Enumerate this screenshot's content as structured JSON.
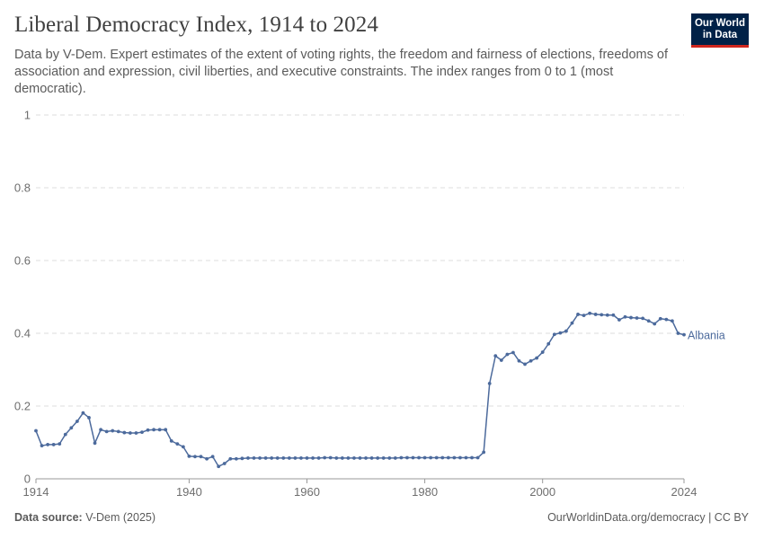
{
  "header": {
    "title": "Liberal Democracy Index, 1914 to 2024",
    "subtitle": "Data by V-Dem. Expert estimates of the extent of voting rights, the freedom and fairness of elections, freedoms of association and expression, civil liberties, and executive constraints. The index ranges from 0 to 1 (most democratic).",
    "logo_line1": "Our World",
    "logo_line2": "in Data"
  },
  "footer": {
    "source_label": "Data source:",
    "source_value": "V-Dem (2025)",
    "url": "OurWorldinData.org/democracy | CC BY"
  },
  "colors": {
    "series": "#4c6a9c",
    "grid": "#dddddd",
    "logo_bg": "#002147",
    "logo_accent": "#ce261e"
  },
  "chart_data": {
    "type": "line",
    "title": "Liberal Democracy Index, 1914 to 2024",
    "xlabel": "",
    "ylabel": "",
    "xlim": [
      1914,
      2024
    ],
    "ylim": [
      0,
      1
    ],
    "x_ticks": [
      1914,
      1940,
      1960,
      1980,
      2000,
      2024
    ],
    "y_ticks": [
      0,
      0.2,
      0.4,
      0.6,
      0.8,
      1
    ],
    "y_tick_labels": [
      "0",
      "0.2",
      "0.4",
      "0.6",
      "0.8",
      "1"
    ],
    "grid": "horizontal dashed",
    "legend": "inline label at line end",
    "series": [
      {
        "name": "Albania",
        "x": [
          1914,
          1915,
          1916,
          1917,
          1918,
          1919,
          1920,
          1921,
          1922,
          1923,
          1924,
          1925,
          1926,
          1927,
          1928,
          1929,
          1930,
          1931,
          1932,
          1933,
          1934,
          1935,
          1936,
          1937,
          1938,
          1939,
          1940,
          1941,
          1942,
          1943,
          1944,
          1945,
          1946,
          1947,
          1948,
          1949,
          1950,
          1951,
          1952,
          1953,
          1954,
          1955,
          1956,
          1957,
          1958,
          1959,
          1960,
          1961,
          1962,
          1963,
          1964,
          1965,
          1966,
          1967,
          1968,
          1969,
          1970,
          1971,
          1972,
          1973,
          1974,
          1975,
          1976,
          1977,
          1978,
          1979,
          1980,
          1981,
          1982,
          1983,
          1984,
          1985,
          1986,
          1987,
          1988,
          1989,
          1990,
          1991,
          1992,
          1993,
          1994,
          1995,
          1996,
          1997,
          1998,
          1999,
          2000,
          2001,
          2002,
          2003,
          2004,
          2005,
          2006,
          2007,
          2008,
          2009,
          2010,
          2011,
          2012,
          2013,
          2014,
          2015,
          2016,
          2017,
          2018,
          2019,
          2020,
          2021,
          2022,
          2023,
          2024
        ],
        "values": [
          0.132,
          0.091,
          0.094,
          0.094,
          0.096,
          0.122,
          0.14,
          0.158,
          0.181,
          0.168,
          0.098,
          0.135,
          0.13,
          0.132,
          0.13,
          0.127,
          0.126,
          0.126,
          0.128,
          0.134,
          0.135,
          0.135,
          0.135,
          0.104,
          0.096,
          0.088,
          0.062,
          0.061,
          0.061,
          0.055,
          0.061,
          0.034,
          0.042,
          0.055,
          0.055,
          0.056,
          0.057,
          0.057,
          0.057,
          0.057,
          0.057,
          0.057,
          0.057,
          0.057,
          0.057,
          0.057,
          0.057,
          0.057,
          0.057,
          0.058,
          0.058,
          0.057,
          0.057,
          0.057,
          0.057,
          0.057,
          0.057,
          0.057,
          0.057,
          0.057,
          0.057,
          0.057,
          0.058,
          0.058,
          0.058,
          0.058,
          0.058,
          0.058,
          0.058,
          0.058,
          0.058,
          0.058,
          0.058,
          0.058,
          0.058,
          0.058,
          0.073,
          0.262,
          0.338,
          0.326,
          0.342,
          0.347,
          0.324,
          0.315,
          0.324,
          0.332,
          0.348,
          0.371,
          0.397,
          0.401,
          0.406,
          0.428,
          0.452,
          0.449,
          0.455,
          0.452,
          0.451,
          0.45,
          0.45,
          0.437,
          0.445,
          0.443,
          0.442,
          0.441,
          0.434,
          0.426,
          0.44,
          0.438,
          0.434,
          0.4,
          0.396
        ]
      }
    ]
  }
}
